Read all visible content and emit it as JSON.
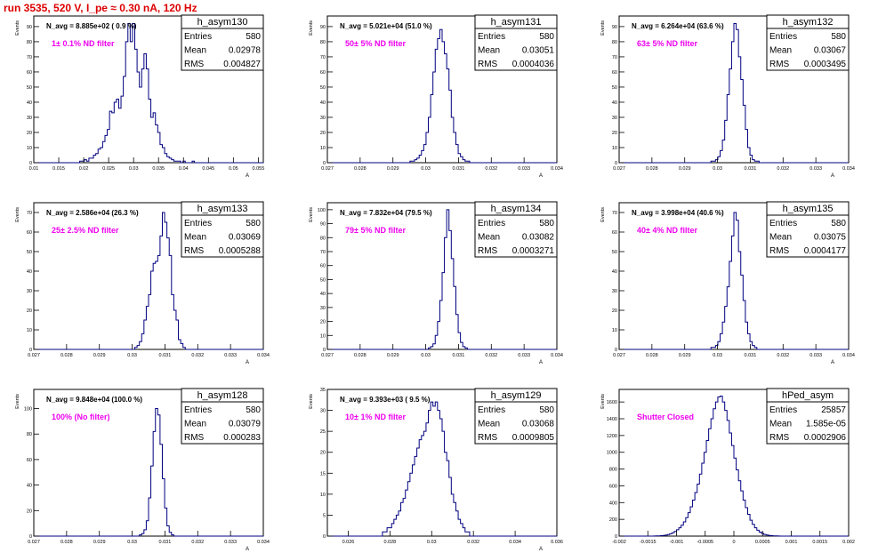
{
  "run_title": "run 3535,   520 V, I_pe ≈ 0.30 nA, 120 Hz",
  "colors": {
    "title": "#dd0000",
    "hist": "#000080",
    "annotation": "#ee00ee",
    "frame": "#000000"
  },
  "chart_data": [
    {
      "type": "bar",
      "name": "h_asym130",
      "navg": "N_avg = 8.885e+02 ( 0.9 %)",
      "annotation": "1± 0.1% ND filter",
      "stats": [
        {
          "label": "Entries",
          "value": "580"
        },
        {
          "label": "Mean",
          "value": "0.02978"
        },
        {
          "label": "RMS",
          "value": "0.004827"
        }
      ],
      "ylabel": "Events",
      "xlabel": "A",
      "xlim": [
        0.01,
        0.056
      ],
      "ylim": [
        0,
        97
      ],
      "xticks": [
        "0.01",
        "0.015",
        "0.02",
        "0.025",
        "0.03",
        "0.035",
        "0.04",
        "0.045",
        "0.05",
        "0.055"
      ],
      "yticks": [
        0,
        10,
        20,
        30,
        40,
        50,
        60,
        70,
        80,
        90
      ],
      "edges": [
        0.01,
        0.056
      ],
      "values": [
        0,
        0,
        0,
        0,
        0,
        0,
        0,
        0,
        0,
        0,
        0,
        0,
        0,
        0,
        0,
        0,
        0,
        0,
        0,
        0,
        1,
        1,
        2,
        1,
        3,
        3,
        5,
        6,
        9,
        10,
        14,
        18,
        22,
        34,
        33,
        40,
        42,
        36,
        44,
        57,
        80,
        92,
        80,
        92,
        75,
        60,
        50,
        62,
        72,
        62,
        42,
        30,
        33,
        25,
        20,
        12,
        10,
        6,
        4,
        3,
        2,
        1,
        1,
        1,
        0,
        1,
        0,
        0,
        0,
        1,
        0,
        0,
        0,
        0,
        0,
        0,
        0,
        0,
        0,
        0,
        0,
        0,
        0,
        0,
        0,
        0,
        0,
        0,
        0,
        0,
        0,
        0,
        0,
        0,
        0,
        0,
        0,
        0,
        0,
        0
      ]
    },
    {
      "type": "bar",
      "name": "h_asym131",
      "navg": "N_avg = 5.021e+04 (51.0 %)",
      "annotation": "50± 5% ND filter",
      "stats": [
        {
          "label": "Entries",
          "value": "580"
        },
        {
          "label": "Mean",
          "value": "0.03051"
        },
        {
          "label": "RMS",
          "value": "0.0004036"
        }
      ],
      "ylabel": "Events",
      "xlabel": "A",
      "xlim": [
        0.027,
        0.034
      ],
      "ylim": [
        0,
        97
      ],
      "xticks": [
        "0.027",
        "0.028",
        "0.029",
        "0.03",
        "0.031",
        "0.032",
        "0.033",
        "0.034"
      ],
      "yticks": [
        0,
        10,
        20,
        30,
        40,
        50,
        60,
        70,
        80,
        90
      ],
      "edges": [
        0.027,
        0.034
      ],
      "values": [
        0,
        0,
        0,
        0,
        0,
        0,
        0,
        0,
        0,
        0,
        0,
        0,
        0,
        0,
        0,
        0,
        0,
        0,
        0,
        0,
        0,
        0,
        0,
        0,
        0,
        0,
        0,
        0,
        0,
        0,
        0,
        0,
        0,
        0,
        0,
        0,
        1,
        1,
        2,
        3,
        5,
        8,
        12,
        20,
        30,
        45,
        60,
        75,
        82,
        88,
        80,
        72,
        62,
        48,
        30,
        20,
        12,
        6,
        4,
        2,
        1,
        1,
        0,
        0,
        0,
        0,
        0,
        0,
        0,
        0,
        0,
        0,
        0,
        0,
        0,
        0,
        0,
        0,
        0,
        0,
        0,
        0,
        0,
        0,
        0,
        0,
        0,
        0,
        0,
        0,
        0,
        0,
        0,
        0,
        0,
        0,
        0,
        0,
        0,
        0
      ]
    },
    {
      "type": "bar",
      "name": "h_asym132",
      "navg": "N_avg = 6.264e+04 (63.6 %)",
      "annotation": "63± 5% ND filter",
      "stats": [
        {
          "label": "Entries",
          "value": "580"
        },
        {
          "label": "Mean",
          "value": "0.03067"
        },
        {
          "label": "RMS",
          "value": "0.0003495"
        }
      ],
      "ylabel": "Events",
      "xlabel": "A",
      "xlim": [
        0.027,
        0.034
      ],
      "ylim": [
        0,
        97
      ],
      "xticks": [
        "0.027",
        "0.028",
        "0.029",
        "0.03",
        "0.031",
        "0.032",
        "0.033",
        "0.034"
      ],
      "yticks": [
        0,
        10,
        20,
        30,
        40,
        50,
        60,
        70,
        80,
        90
      ],
      "edges": [
        0.027,
        0.034
      ],
      "values": [
        0,
        0,
        0,
        0,
        0,
        0,
        0,
        0,
        0,
        0,
        0,
        0,
        0,
        0,
        0,
        0,
        0,
        0,
        0,
        0,
        0,
        0,
        0,
        0,
        0,
        0,
        0,
        0,
        0,
        0,
        0,
        0,
        0,
        0,
        0,
        0,
        0,
        0,
        0,
        0,
        1,
        1,
        2,
        4,
        8,
        15,
        28,
        45,
        62,
        80,
        92,
        88,
        70,
        55,
        38,
        22,
        10,
        5,
        2,
        1,
        1,
        0,
        0,
        0,
        0,
        0,
        0,
        0,
        0,
        0,
        0,
        0,
        0,
        0,
        0,
        0,
        0,
        0,
        0,
        0,
        0,
        0,
        0,
        0,
        0,
        0,
        0,
        0,
        0,
        0,
        0,
        0,
        0,
        0,
        0,
        0,
        0,
        0,
        0,
        0
      ]
    },
    {
      "type": "bar",
      "name": "h_asym133",
      "navg": "N_avg = 2.586e+04 (26.3 %)",
      "annotation": "25± 2.5% ND filter",
      "stats": [
        {
          "label": "Entries",
          "value": "580"
        },
        {
          "label": "Mean",
          "value": "0.03069"
        },
        {
          "label": "RMS",
          "value": "0.0005288"
        }
      ],
      "ylabel": "Events",
      "xlabel": "A",
      "xlim": [
        0.027,
        0.034
      ],
      "ylim": [
        0,
        75
      ],
      "xticks": [
        "0.027",
        "0.028",
        "0.029",
        "0.03",
        "0.031",
        "0.032",
        "0.033",
        "0.034"
      ],
      "yticks": [
        0,
        10,
        20,
        30,
        40,
        50,
        60,
        70
      ],
      "edges": [
        0.027,
        0.034
      ],
      "values": [
        0,
        0,
        0,
        0,
        0,
        0,
        0,
        0,
        0,
        0,
        0,
        0,
        0,
        0,
        0,
        0,
        0,
        0,
        0,
        0,
        0,
        0,
        0,
        0,
        0,
        0,
        0,
        0,
        0,
        0,
        0,
        0,
        0,
        0,
        0,
        0,
        0,
        0,
        0,
        0,
        0,
        0,
        0,
        0,
        1,
        2,
        4,
        8,
        15,
        22,
        28,
        40,
        44,
        45,
        48,
        58,
        70,
        65,
        57,
        48,
        28,
        20,
        15,
        5,
        3,
        1,
        0,
        0,
        0,
        0,
        0,
        0,
        0,
        0,
        0,
        0,
        0,
        0,
        0,
        0,
        0,
        0,
        0,
        0,
        0,
        0,
        0,
        0,
        0,
        0,
        0,
        0,
        0,
        0,
        0,
        0,
        0,
        0,
        0,
        0
      ]
    },
    {
      "type": "bar",
      "name": "h_asym134",
      "navg": "N_avg = 7.832e+04 (79.5 %)",
      "annotation": "79± 5% ND filter",
      "stats": [
        {
          "label": "Entries",
          "value": "580"
        },
        {
          "label": "Mean",
          "value": "0.03082"
        },
        {
          "label": "RMS",
          "value": "0.0003271"
        }
      ],
      "ylabel": "Events",
      "xlabel": "A",
      "xlim": [
        0.027,
        0.034
      ],
      "ylim": [
        0,
        105
      ],
      "xticks": [
        "0.027",
        "0.028",
        "0.029",
        "0.03",
        "0.031",
        "0.032",
        "0.033",
        "0.034"
      ],
      "yticks": [
        0,
        10,
        20,
        30,
        40,
        50,
        60,
        70,
        80,
        90,
        100
      ],
      "edges": [
        0.027,
        0.034
      ],
      "values": [
        0,
        0,
        0,
        0,
        0,
        0,
        0,
        0,
        0,
        0,
        0,
        0,
        0,
        0,
        0,
        0,
        0,
        0,
        0,
        0,
        0,
        0,
        0,
        0,
        0,
        0,
        0,
        0,
        0,
        0,
        0,
        0,
        0,
        0,
        0,
        0,
        0,
        0,
        0,
        0,
        0,
        0,
        0,
        0,
        1,
        2,
        4,
        10,
        20,
        35,
        55,
        80,
        100,
        85,
        65,
        45,
        25,
        12,
        5,
        2,
        1,
        0,
        0,
        0,
        0,
        0,
        0,
        0,
        0,
        0,
        0,
        0,
        0,
        0,
        0,
        0,
        0,
        0,
        0,
        0,
        0,
        0,
        0,
        0,
        0,
        0,
        0,
        0,
        0,
        0,
        0,
        0,
        0,
        0,
        0,
        0,
        0,
        0,
        0,
        0
      ]
    },
    {
      "type": "bar",
      "name": "h_asym135",
      "navg": "N_avg = 3.998e+04 (40.6 %)",
      "annotation": "40± 4% ND filter",
      "stats": [
        {
          "label": "Entries",
          "value": "580"
        },
        {
          "label": "Mean",
          "value": "0.03075"
        },
        {
          "label": "RMS",
          "value": "0.0004177"
        }
      ],
      "ylabel": "Events",
      "xlabel": "A",
      "xlim": [
        0.027,
        0.034
      ],
      "ylim": [
        0,
        75
      ],
      "xticks": [
        "0.027",
        "0.028",
        "0.029",
        "0.03",
        "0.031",
        "0.032",
        "0.033",
        "0.034"
      ],
      "yticks": [
        0,
        10,
        20,
        30,
        40,
        50,
        60,
        70
      ],
      "edges": [
        0.027,
        0.034
      ],
      "values": [
        0,
        0,
        0,
        0,
        0,
        0,
        0,
        0,
        0,
        0,
        0,
        0,
        0,
        0,
        0,
        0,
        0,
        0,
        0,
        0,
        0,
        0,
        0,
        0,
        0,
        0,
        0,
        0,
        0,
        0,
        0,
        0,
        0,
        0,
        0,
        0,
        0,
        0,
        0,
        0,
        1,
        1,
        2,
        4,
        8,
        14,
        22,
        32,
        45,
        58,
        70,
        66,
        50,
        38,
        25,
        14,
        8,
        4,
        2,
        1,
        0,
        0,
        0,
        0,
        0,
        0,
        0,
        0,
        0,
        0,
        0,
        0,
        0,
        0,
        0,
        0,
        0,
        0,
        0,
        0,
        0,
        0,
        0,
        0,
        0,
        0,
        0,
        0,
        0,
        0,
        0,
        0,
        0,
        0,
        0,
        0,
        0,
        0,
        0,
        0
      ]
    },
    {
      "type": "bar",
      "name": "h_asym128",
      "navg": "N_avg = 9.848e+04 (100.0 %)",
      "annotation": "100% (No filter)",
      "stats": [
        {
          "label": "Entries",
          "value": "580"
        },
        {
          "label": "Mean",
          "value": "0.03079"
        },
        {
          "label": "RMS",
          "value": "0.000283"
        }
      ],
      "ylabel": "Events",
      "xlabel": "A",
      "xlim": [
        0.027,
        0.034
      ],
      "ylim": [
        0,
        115
      ],
      "xticks": [
        "0.027",
        "0.028",
        "0.029",
        "0.03",
        "0.031",
        "0.032",
        "0.033",
        "0.034"
      ],
      "yticks": [
        0,
        20,
        40,
        60,
        80,
        100
      ],
      "edges": [
        0.027,
        0.034
      ],
      "values": [
        0,
        0,
        0,
        0,
        0,
        0,
        0,
        0,
        0,
        0,
        0,
        0,
        0,
        0,
        0,
        0,
        0,
        0,
        0,
        0,
        0,
        0,
        0,
        0,
        0,
        0,
        0,
        0,
        0,
        0,
        0,
        0,
        0,
        0,
        0,
        0,
        0,
        0,
        0,
        0,
        0,
        0,
        0,
        0,
        0,
        0,
        1,
        2,
        5,
        12,
        30,
        55,
        82,
        100,
        95,
        72,
        45,
        22,
        8,
        3,
        1,
        0,
        0,
        0,
        0,
        0,
        0,
        0,
        0,
        0,
        0,
        0,
        0,
        0,
        0,
        0,
        0,
        0,
        0,
        0,
        0,
        0,
        0,
        0,
        0,
        0,
        0,
        0,
        0,
        0,
        0,
        0,
        0,
        0,
        0,
        0,
        0,
        0,
        0,
        0
      ]
    },
    {
      "type": "bar",
      "name": "h_asym129",
      "navg": "N_avg = 9.393e+03 ( 9.5 %)",
      "annotation": "10± 1% ND filter",
      "stats": [
        {
          "label": "Entries",
          "value": "580"
        },
        {
          "label": "Mean",
          "value": "0.03068"
        },
        {
          "label": "RMS",
          "value": "0.0009805"
        }
      ],
      "ylabel": "Events",
      "xlabel": "A",
      "xlim": [
        0.025,
        0.036
      ],
      "ylim": [
        0,
        35
      ],
      "xticks": [
        "0.026",
        "0.028",
        "0.03",
        "0.032",
        "0.034",
        "0.036"
      ],
      "yticks": [
        0,
        5,
        10,
        15,
        20,
        25,
        30,
        35
      ],
      "edges": [
        0.025,
        0.036
      ],
      "values": [
        0,
        0,
        0,
        0,
        0,
        0,
        0,
        0,
        0,
        0,
        0,
        0,
        0,
        0,
        0,
        0,
        0,
        0,
        0,
        0,
        0,
        0,
        0,
        0,
        1,
        1,
        2,
        2,
        3,
        4,
        5,
        6,
        8,
        9,
        11,
        13,
        15,
        17,
        19,
        21,
        23,
        24,
        25,
        27,
        30,
        32,
        31,
        32,
        30,
        28,
        25,
        20,
        18,
        14,
        10,
        8,
        6,
        4,
        3,
        2,
        1,
        1,
        0,
        0,
        0,
        0,
        0,
        0,
        0,
        0,
        0,
        0,
        0,
        0,
        0,
        0,
        0,
        0,
        0,
        0,
        0,
        0,
        0,
        0,
        0,
        0,
        0,
        0,
        0,
        0,
        0,
        0,
        0,
        0,
        0,
        0,
        0,
        0,
        0,
        0
      ]
    },
    {
      "type": "bar",
      "name": "hPed_asym",
      "navg": "",
      "annotation": "Shutter Closed",
      "stats": [
        {
          "label": "Entries",
          "value": "25857"
        },
        {
          "label": "Mean",
          "value": "1.585e-05"
        },
        {
          "label": "RMS",
          "value": "0.0002906"
        }
      ],
      "ylabel": "Events",
      "xlabel": "",
      "xlim": [
        -0.002,
        0.002
      ],
      "ylim": [
        0,
        1750
      ],
      "xticks": [
        "-0.002",
        "-0.0015",
        "-0.001",
        "-0.0005",
        "0",
        "0.0005",
        "0.001",
        "0.0015",
        "0.002"
      ],
      "yticks": [
        0,
        200,
        400,
        600,
        800,
        1000,
        1200,
        1400,
        1600
      ],
      "edges": [
        -0.002,
        0.002
      ],
      "values": [
        0,
        0,
        0,
        0,
        0,
        0,
        0,
        0,
        0,
        0,
        0,
        0,
        0,
        0,
        0,
        1,
        2,
        3,
        5,
        8,
        12,
        18,
        28,
        40,
        55,
        75,
        100,
        130,
        170,
        220,
        280,
        350,
        430,
        520,
        620,
        740,
        870,
        1000,
        1140,
        1280,
        1400,
        1520,
        1600,
        1660,
        1670,
        1600,
        1500,
        1380,
        1230,
        1080,
        930,
        790,
        660,
        540,
        430,
        340,
        260,
        190,
        140,
        100,
        70,
        48,
        32,
        20,
        13,
        8,
        5,
        3,
        2,
        1,
        0,
        0,
        0,
        0,
        0,
        0,
        0,
        0,
        0,
        0,
        0,
        0,
        0,
        0,
        0,
        0,
        0,
        0,
        0,
        0,
        0,
        0,
        0,
        0,
        0,
        0,
        0,
        0,
        0,
        0
      ]
    }
  ]
}
